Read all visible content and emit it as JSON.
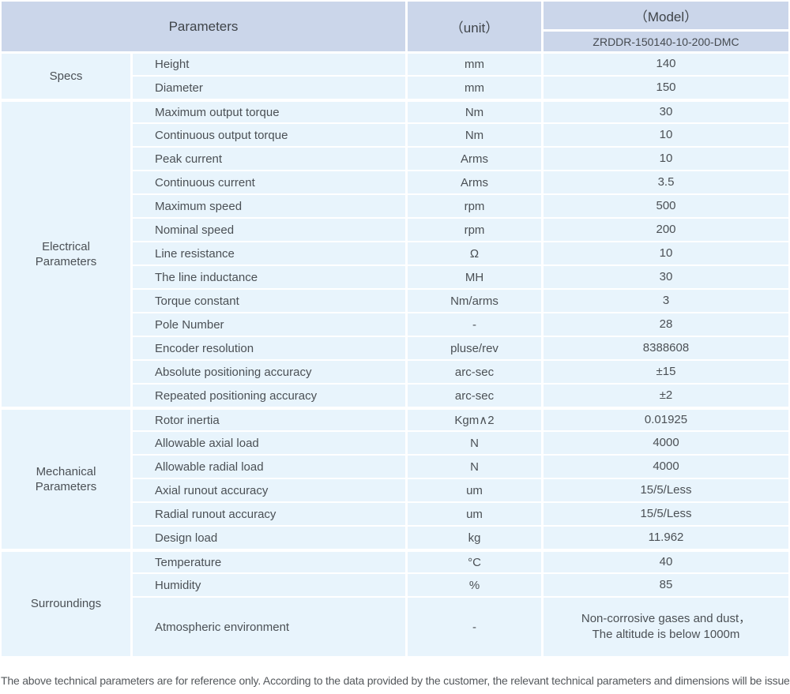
{
  "header": {
    "parameters_label": "Parameters",
    "unit_label": "（unit）",
    "model_label": "（Model）",
    "model_value": "ZRDDR-150140-10-200-DMC"
  },
  "groups": [
    {
      "category": "Specs",
      "rows": [
        {
          "name": "Height",
          "unit": "mm",
          "value": "140"
        },
        {
          "name": "Diameter",
          "unit": "mm",
          "value": "150"
        }
      ]
    },
    {
      "category": "Electrical\nParameters",
      "rows": [
        {
          "name": "Maximum output torque",
          "unit": "Nm",
          "value": "30"
        },
        {
          "name": "Continuous output torque",
          "unit": "Nm",
          "value": "10"
        },
        {
          "name": "Peak current",
          "unit": "Arms",
          "value": "10"
        },
        {
          "name": "Continuous current",
          "unit": "Arms",
          "value": "3.5"
        },
        {
          "name": "Maximum speed",
          "unit": "rpm",
          "value": "500"
        },
        {
          "name": "Nominal speed",
          "unit": "rpm",
          "value": "200"
        },
        {
          "name": "Line resistance",
          "unit": "Ω",
          "value": "10"
        },
        {
          "name": "The line inductance",
          "unit": "MH",
          "value": "30"
        },
        {
          "name": "Torque constant",
          "unit": "Nm/arms",
          "value": "3"
        },
        {
          "name": "Pole Number",
          "unit": "-",
          "value": "28"
        },
        {
          "name": "Encoder resolution",
          "unit": "pluse/rev",
          "value": "8388608"
        },
        {
          "name": "Absolute positioning accuracy",
          "unit": "arc-sec",
          "value": "±15"
        },
        {
          "name": "Repeated positioning accuracy",
          "unit": "arc-sec",
          "value": "±2"
        }
      ]
    },
    {
      "category": "Mechanical\nParameters",
      "rows": [
        {
          "name": "Rotor inertia",
          "unit": "Kgm∧2",
          "value": "0.01925"
        },
        {
          "name": "Allowable axial load",
          "unit": "N",
          "value": "4000"
        },
        {
          "name": "Allowable radial load",
          "unit": "N",
          "value": "4000"
        },
        {
          "name": "Axial runout accuracy",
          "unit": "um",
          "value": "15/5/Less"
        },
        {
          "name": "Radial runout accuracy",
          "unit": "um",
          "value": "15/5/Less"
        },
        {
          "name": "Design load",
          "unit": "kg",
          "value": "11.962"
        }
      ]
    },
    {
      "category": "Surroundings",
      "rows": [
        {
          "name": "Temperature",
          "unit": "°C",
          "value": "40"
        },
        {
          "name": "Humidity",
          "unit": "%",
          "value": "85"
        },
        {
          "name": "Atmospheric environment",
          "unit": "-",
          "value": "Non-corrosive gases and dust，\nThe altitude is below 1000m",
          "tall": true
        }
      ]
    }
  ],
  "footer": {
    "note": "The above technical parameters are for reference only. According to the data provided by the customer, the relevant technical parameters and dimensions will be issued."
  },
  "colors": {
    "header_bg": "#cbd6ea",
    "cell_bg": "#e8f4fc",
    "body_text": "#4b5055",
    "header_text": "#3f4449",
    "footer_text": "#54585c",
    "separator": "#ffffff"
  }
}
